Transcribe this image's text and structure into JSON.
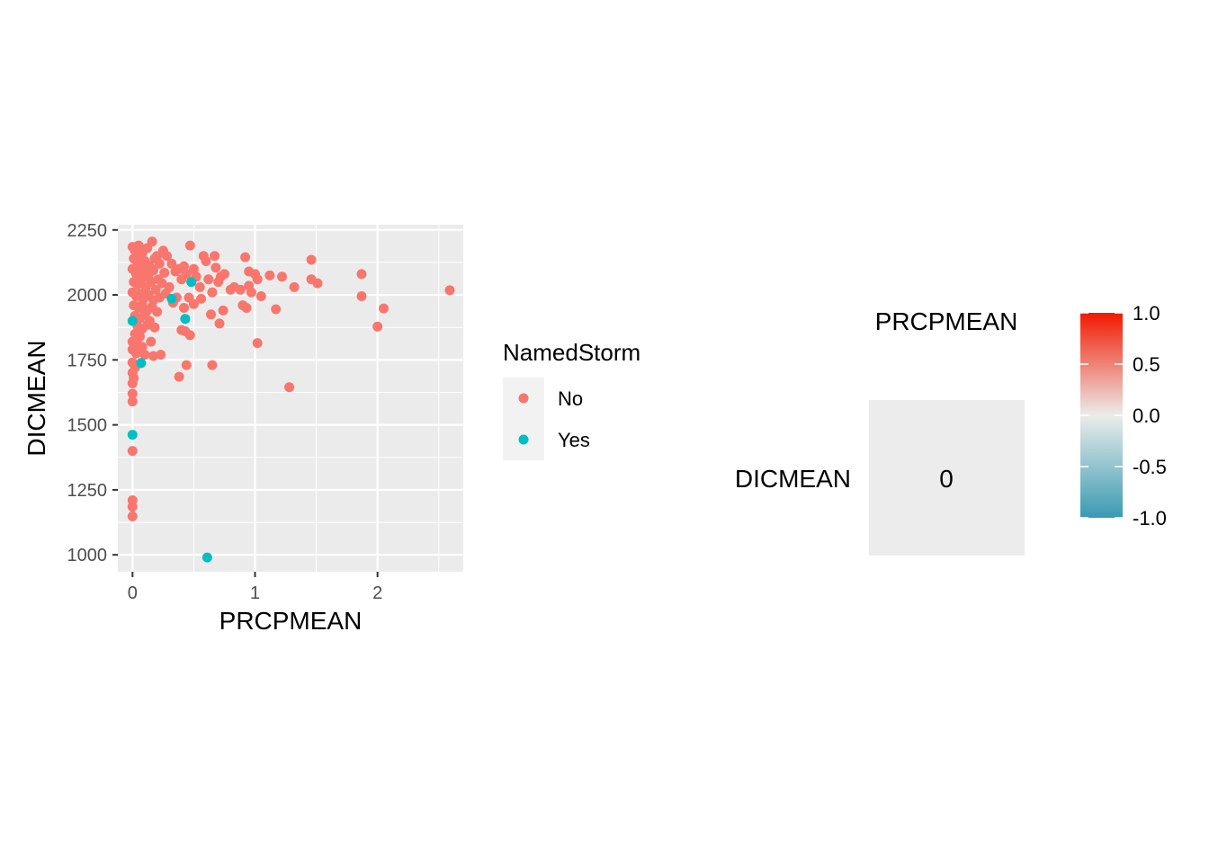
{
  "chart_data": [
    {
      "type": "scatter",
      "xlabel": "PRCPMEAN",
      "ylabel": "DICMEAN",
      "xlim": [
        -0.12,
        2.7
      ],
      "ylim": [
        935,
        2270
      ],
      "x_ticks": [
        0,
        1,
        2
      ],
      "x_tick_labels": [
        "0",
        "1",
        "2"
      ],
      "y_ticks": [
        1000,
        1250,
        1500,
        1750,
        2000,
        2250
      ],
      "y_tick_labels": [
        "1000",
        "1250",
        "1500",
        "1750",
        "2000",
        "2250"
      ],
      "grid": true,
      "legend": {
        "title": "NamedStorm",
        "position": "right",
        "entries": [
          {
            "label": "No",
            "color": "#F8766D"
          },
          {
            "label": "Yes",
            "color": "#00BFC4"
          }
        ]
      },
      "series": [
        {
          "name": "No",
          "color": "#F8766D",
          "points": [
            [
              0,
              2185
            ],
            [
              0.02,
              2170
            ],
            [
              0.05,
              2190
            ],
            [
              0.08,
              2160
            ],
            [
              0.12,
              2180
            ],
            [
              0.16,
              2205
            ],
            [
              0.2,
              2150
            ],
            [
              0.25,
              2170
            ],
            [
              0.01,
              2140
            ],
            [
              0.04,
              2120
            ],
            [
              0.07,
              2150
            ],
            [
              0.1,
              2130
            ],
            [
              0.14,
              2110
            ],
            [
              0.18,
              2140
            ],
            [
              0.22,
              2120
            ],
            [
              0.28,
              2150
            ],
            [
              0,
              2100
            ],
            [
              0.03,
              2080
            ],
            [
              0.06,
              2110
            ],
            [
              0.09,
              2090
            ],
            [
              0.13,
              2070
            ],
            [
              0.17,
              2095
            ],
            [
              0.21,
              2060
            ],
            [
              0.26,
              2085
            ],
            [
              0.01,
              2050
            ],
            [
              0.04,
              2040
            ],
            [
              0.07,
              2060
            ],
            [
              0.11,
              2030
            ],
            [
              0.15,
              2050
            ],
            [
              0.19,
              2020
            ],
            [
              0.24,
              2045
            ],
            [
              0.3,
              2030
            ],
            [
              0,
              2010
            ],
            [
              0.03,
              1995
            ],
            [
              0.06,
              2005
            ],
            [
              0.09,
              1985
            ],
            [
              0.13,
              2000
            ],
            [
              0.17,
              1980
            ],
            [
              0.22,
              1990
            ],
            [
              0.27,
              2005
            ],
            [
              0.01,
              1960
            ],
            [
              0.05,
              1950
            ],
            [
              0.08,
              1965
            ],
            [
              0.12,
              1940
            ],
            [
              0.16,
              1955
            ],
            [
              0.2,
              1935
            ],
            [
              0.02,
              1920
            ],
            [
              0.06,
              1910
            ],
            [
              0.1,
              1925
            ],
            [
              0.14,
              1900
            ],
            [
              0.04,
              1880
            ],
            [
              0.08,
              1870
            ],
            [
              0.12,
              1885
            ],
            [
              0.18,
              1875
            ],
            [
              0.02,
              1850
            ],
            [
              0.06,
              1840
            ],
            [
              0,
              1820
            ],
            [
              0.04,
              1810
            ],
            [
              0.08,
              1800
            ],
            [
              0.15,
              1820
            ],
            [
              0.0,
              1790
            ],
            [
              0.03,
              1775
            ],
            [
              0.06,
              1785
            ],
            [
              0.1,
              1770
            ],
            [
              0.17,
              1765
            ],
            [
              0.23,
              1770
            ],
            [
              0.0,
              1740
            ],
            [
              0.02,
              1720
            ],
            [
              0.0,
              1700
            ],
            [
              0.01,
              1680
            ],
            [
              0.0,
              1660
            ],
            [
              0.0,
              1620
            ],
            [
              0.0,
              1590
            ],
            [
              0.0,
              1400
            ],
            [
              0.0,
              1210
            ],
            [
              0.0,
              1185
            ],
            [
              0.0,
              1148
            ],
            [
              0.32,
              2120
            ],
            [
              0.35,
              2090
            ],
            [
              0.38,
              2100
            ],
            [
              0.4,
              2060
            ],
            [
              0.42,
              2110
            ],
            [
              0.44,
              2080
            ],
            [
              0.47,
              2190
            ],
            [
              0.48,
              2050
            ],
            [
              0.5,
              2100
            ],
            [
              0.52,
              2070
            ],
            [
              0.55,
              2030
            ],
            [
              0.58,
              2150
            ],
            [
              0.6,
              2130
            ],
            [
              0.62,
              2060
            ],
            [
              0.65,
              2010
            ],
            [
              0.67,
              2150
            ],
            [
              0.68,
              2105
            ],
            [
              0.7,
              2050
            ],
            [
              0.72,
              2070
            ],
            [
              0.75,
              2080
            ],
            [
              0.8,
              2020
            ],
            [
              0.83,
              2030
            ],
            [
              0.88,
              2020
            ],
            [
              0.92,
              2145
            ],
            [
              0.95,
              2090
            ],
            [
              0.97,
              2010
            ],
            [
              1.0,
              2080
            ],
            [
              1.02,
              2060
            ],
            [
              1.05,
              1995
            ],
            [
              1.12,
              2075
            ],
            [
              1.17,
              1945
            ],
            [
              1.22,
              2070
            ],
            [
              1.32,
              2030
            ],
            [
              1.46,
              2135
            ],
            [
              1.46,
              2060
            ],
            [
              1.51,
              2045
            ],
            [
              1.87,
              2080
            ],
            [
              1.87,
              1995
            ],
            [
              2.0,
              1878
            ],
            [
              2.05,
              1948
            ],
            [
              2.59,
              2018
            ],
            [
              0.33,
              1970
            ],
            [
              0.36,
              1990
            ],
            [
              0.42,
              1950
            ],
            [
              0.46,
              1990
            ],
            [
              0.5,
              1965
            ],
            [
              0.56,
              1985
            ],
            [
              0.64,
              1925
            ],
            [
              0.71,
              1890
            ],
            [
              0.74,
              1940
            ],
            [
              0.9,
              1960
            ],
            [
              0.93,
              1950
            ],
            [
              0.95,
              2035
            ],
            [
              0.4,
              1865
            ],
            [
              0.43,
              1860
            ],
            [
              0.47,
              1845
            ],
            [
              0.38,
              1685
            ],
            [
              0.44,
              1730
            ],
            [
              0.65,
              1730
            ],
            [
              1.02,
              1815
            ],
            [
              1.28,
              1645
            ]
          ]
        },
        {
          "name": "Yes",
          "color": "#00BFC4",
          "points": [
            [
              0.0,
              1900
            ],
            [
              0.07,
              1738
            ],
            [
              0.0,
              1462
            ],
            [
              0.32,
              1985
            ],
            [
              0.43,
              1908
            ],
            [
              0.48,
              2050
            ],
            [
              0.61,
              990
            ]
          ]
        }
      ]
    },
    {
      "type": "heatmap",
      "columns": [
        "PRCPMEAN"
      ],
      "rows": [
        "DICMEAN"
      ],
      "values": [
        [
          0
        ]
      ],
      "value_labels": [
        [
          "0"
        ]
      ],
      "colorbar": {
        "min": -1.0,
        "max": 1.0,
        "ticks": [
          1.0,
          0.5,
          0.0,
          -0.5,
          -1.0
        ],
        "tick_labels": [
          "1.0",
          "0.5",
          "0.0",
          "-0.5",
          "-1.0"
        ],
        "colors": {
          "low": "#3A9AB2",
          "mid": "#EBECEB",
          "high": "#F21A00"
        }
      }
    }
  ]
}
